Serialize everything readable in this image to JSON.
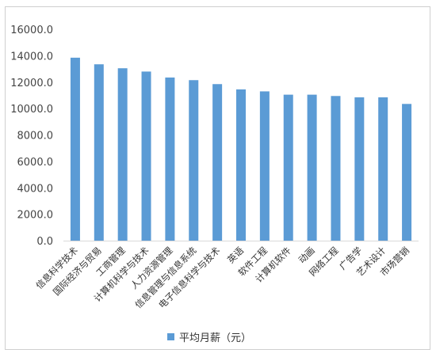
{
  "chart_data": {
    "type": "bar",
    "categories": [
      "信息科学技术",
      "国际经济与贸易",
      "工商管理",
      "计算机科学与技术",
      "人力资源管理",
      "信息管理与信息系统",
      "电子信息科学与技术",
      "英语",
      "软件工程",
      "计算机软件",
      "动画",
      "网络工程",
      "广告学",
      "艺术设计",
      "市场营销"
    ],
    "series": [
      {
        "name": "平均月薪（元）",
        "values": [
          13850,
          13350,
          13050,
          12800,
          12350,
          12150,
          11850,
          11450,
          11300,
          11050,
          11050,
          10950,
          10850,
          10850,
          10350
        ]
      }
    ],
    "yticks": [
      "0.0",
      "2000.0",
      "4000.0",
      "6000.0",
      "8000.0",
      "10000.0",
      "12000.0",
      "14000.0",
      "16000.0"
    ],
    "ylim": [
      0,
      16000
    ],
    "grid": false,
    "legend_position": "bottom",
    "bar_color": "#5b9bd5"
  }
}
